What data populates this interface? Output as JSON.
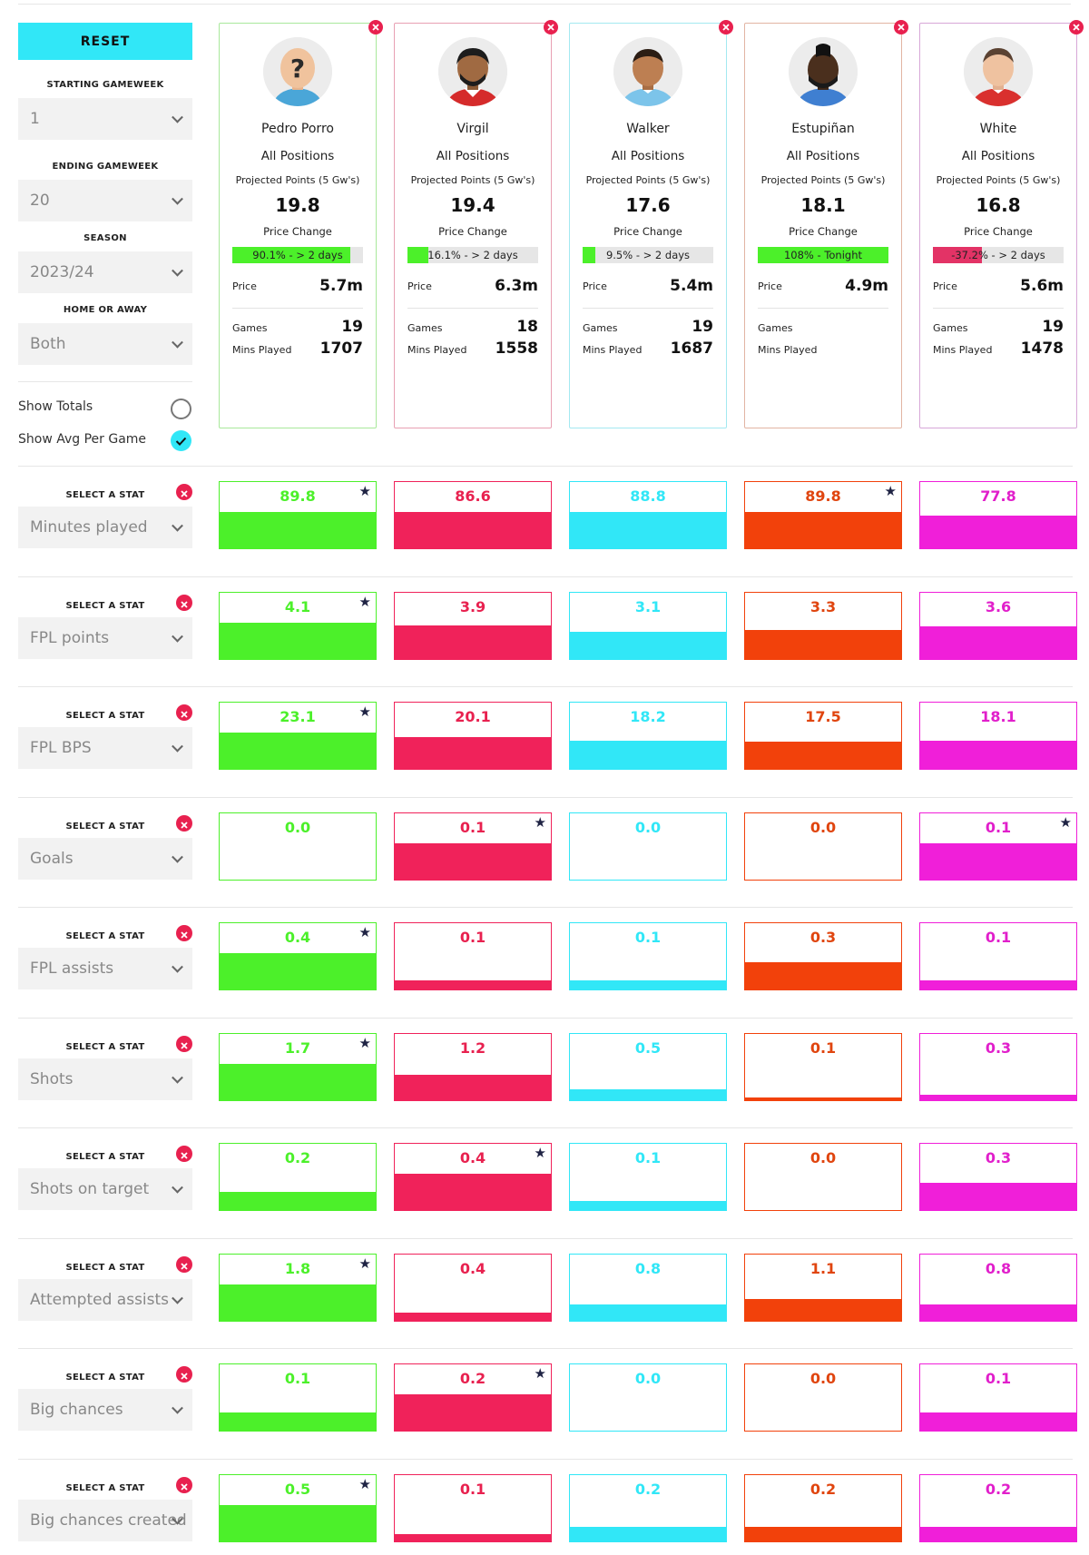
{
  "controls": {
    "reset_label": "RESET",
    "starting_gw_label": "STARTING GAMEWEEK",
    "starting_gw_value": "1",
    "ending_gw_label": "ENDING GAMEWEEK",
    "ending_gw_value": "20",
    "season_label": "SEASON",
    "season_value": "2023/24",
    "home_away_label": "HOME OR AWAY",
    "home_away_value": "Both",
    "show_totals_label": "Show Totals",
    "show_totals_checked": false,
    "show_avg_label": "Show Avg Per Game",
    "show_avg_checked": true
  },
  "colors": {
    "accent": "#31e7f7",
    "remove": "#e8214f",
    "star": "#1f2344"
  },
  "players": [
    {
      "name": "Pedro Porro",
      "position": "All Positions",
      "projected_label": "Projected Points (5 Gw's)",
      "projected_points": "19.8",
      "price_change_label": "Price Change",
      "price_change_text": "90.1% - > 2 days",
      "price_change_fill": 0.9,
      "price_change_color": "#4cf02a",
      "price_label": "Price",
      "price": "5.7m",
      "games_label": "Games",
      "games": "19",
      "mins_label": "Mins Played",
      "mins": "1707",
      "color": "#4cf02a",
      "text_color": "#4cf02a",
      "border": "#a9e89b",
      "avatar": "unknown-avatar"
    },
    {
      "name": "Virgil",
      "position": "All Positions",
      "projected_label": "Projected Points (5 Gw's)",
      "projected_points": "19.4",
      "price_change_label": "Price Change",
      "price_change_text": "16.1% - > 2 days",
      "price_change_fill": 0.161,
      "price_change_color": "#4cf02a",
      "price_label": "Price",
      "price": "6.3m",
      "games_label": "Games",
      "games": "18",
      "mins_label": "Mins Played",
      "mins": "1558",
      "color": "#f0225a",
      "text_color": "#e8214f",
      "border": "#e8a0b3",
      "avatar": "virgil-avatar"
    },
    {
      "name": "Walker",
      "position": "All Positions",
      "projected_label": "Projected Points (5 Gw's)",
      "projected_points": "17.6",
      "price_change_label": "Price Change",
      "price_change_text": "9.5% - > 2 days",
      "price_change_fill": 0.095,
      "price_change_color": "#4cf02a",
      "price_label": "Price",
      "price": "5.4m",
      "games_label": "Games",
      "games": "19",
      "mins_label": "Mins Played",
      "mins": "1687",
      "color": "#31e7f7",
      "text_color": "#31e7f7",
      "border": "#a4e9f1",
      "avatar": "walker-avatar"
    },
    {
      "name": "Estupiñan",
      "position": "All Positions",
      "projected_label": "Projected Points (5 Gw's)",
      "projected_points": "18.1",
      "price_change_label": "Price Change",
      "price_change_text": "108% - Tonight",
      "price_change_fill": 1.0,
      "price_change_color": "#4cf02a",
      "price_label": "Price",
      "price": "4.9m",
      "games_label": "Games",
      "games": "",
      "mins_label": "Mins Played",
      "mins": "",
      "color": "#f2410b",
      "text_color": "#e0450f",
      "border": "#e2b5a3",
      "avatar": "estupinan-avatar"
    },
    {
      "name": "White",
      "position": "All Positions",
      "projected_label": "Projected Points (5 Gw's)",
      "projected_points": "16.8",
      "price_change_label": "Price Change",
      "price_change_text": "-37.2% - > 2 days",
      "price_change_fill": 0.372,
      "price_change_color": "#e33366",
      "price_label": "Price",
      "price": "5.6m",
      "games_label": "Games",
      "games": "19",
      "mins_label": "Mins Played",
      "mins": "1478",
      "color": "#f01fd9",
      "text_color": "#e11fcb",
      "border": "#d7a7d8",
      "avatar": "white-avatar"
    }
  ],
  "stat_label": "SELECT A STAT",
  "stats": [
    {
      "name": "Minutes played",
      "values": [
        "89.8",
        "86.6",
        "88.8",
        "89.8",
        "77.8"
      ],
      "fills": [
        0.55,
        0.55,
        0.55,
        0.55,
        0.5
      ],
      "stars": [
        true,
        false,
        false,
        true,
        false
      ]
    },
    {
      "name": "FPL points",
      "values": [
        "4.1",
        "3.9",
        "3.1",
        "3.3",
        "3.6"
      ],
      "fills": [
        0.55,
        0.52,
        0.42,
        0.45,
        0.5
      ],
      "stars": [
        true,
        false,
        false,
        false,
        false
      ]
    },
    {
      "name": "FPL BPS",
      "values": [
        "23.1",
        "20.1",
        "18.2",
        "17.5",
        "18.1"
      ],
      "fills": [
        0.55,
        0.48,
        0.43,
        0.42,
        0.43
      ],
      "stars": [
        true,
        false,
        false,
        false,
        false
      ]
    },
    {
      "name": "Goals",
      "values": [
        "0.0",
        "0.1",
        "0.0",
        "0.0",
        "0.1"
      ],
      "fills": [
        0,
        0.55,
        0,
        0,
        0.55
      ],
      "stars": [
        false,
        true,
        false,
        false,
        true
      ]
    },
    {
      "name": "FPL assists",
      "values": [
        "0.4",
        "0.1",
        "0.1",
        "0.3",
        "0.1"
      ],
      "fills": [
        0.55,
        0.14,
        0.14,
        0.42,
        0.14
      ],
      "stars": [
        true,
        false,
        false,
        false,
        false
      ]
    },
    {
      "name": "Shots",
      "values": [
        "1.7",
        "1.2",
        "0.5",
        "0.1",
        "0.3"
      ],
      "fills": [
        0.55,
        0.39,
        0.16,
        0.03,
        0.09
      ],
      "stars": [
        true,
        false,
        false,
        false,
        false
      ]
    },
    {
      "name": "Shots on target",
      "values": [
        "0.2",
        "0.4",
        "0.1",
        "0.0",
        "0.3"
      ],
      "fills": [
        0.28,
        0.55,
        0.14,
        0,
        0.42
      ],
      "stars": [
        false,
        true,
        false,
        false,
        false
      ]
    },
    {
      "name": "Attempted assists",
      "values": [
        "1.8",
        "0.4",
        "0.8",
        "1.1",
        "0.8"
      ],
      "fills": [
        0.55,
        0.12,
        0.25,
        0.34,
        0.25
      ],
      "stars": [
        true,
        false,
        false,
        false,
        false
      ]
    },
    {
      "name": "Big chances",
      "values": [
        "0.1",
        "0.2",
        "0.0",
        "0.0",
        "0.1"
      ],
      "fills": [
        0.28,
        0.55,
        0,
        0,
        0.28
      ],
      "stars": [
        false,
        true,
        false,
        false,
        false
      ]
    },
    {
      "name": "Big chances created",
      "values": [
        "0.5",
        "0.1",
        "0.2",
        "0.2",
        "0.2"
      ],
      "fills": [
        0.55,
        0.11,
        0.22,
        0.22,
        0.22
      ],
      "stars": [
        true,
        false,
        false,
        false,
        false
      ]
    }
  ]
}
